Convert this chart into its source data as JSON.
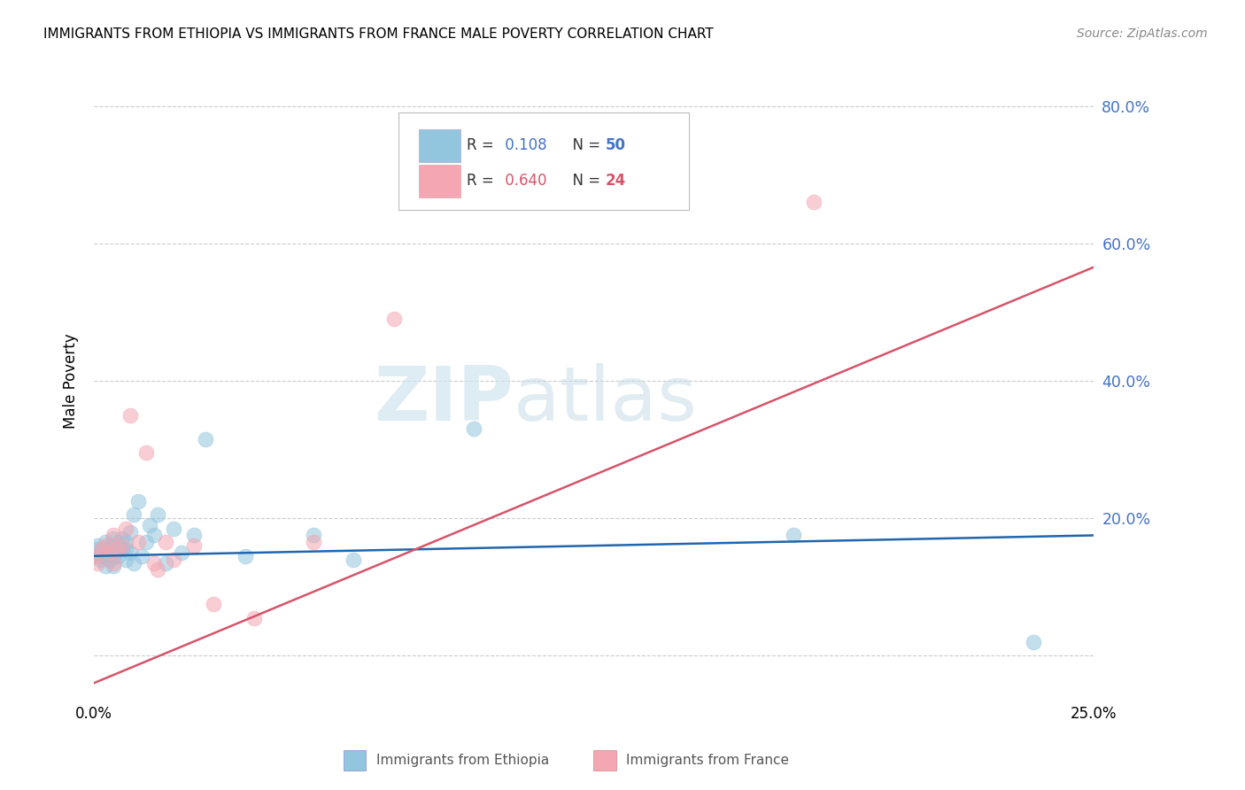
{
  "title": "IMMIGRANTS FROM ETHIOPIA VS IMMIGRANTS FROM FRANCE MALE POVERTY CORRELATION CHART",
  "source": "Source: ZipAtlas.com",
  "xlabel_ethiopia": "Immigrants from Ethiopia",
  "xlabel_france": "Immigrants from France",
  "ylabel": "Male Poverty",
  "r_ethiopia": 0.108,
  "n_ethiopia": 50,
  "r_france": 0.64,
  "n_france": 24,
  "xlim": [
    0.0,
    0.25
  ],
  "ylim": [
    -0.06,
    0.86
  ],
  "yticks": [
    0.0,
    0.2,
    0.4,
    0.6,
    0.8
  ],
  "ytick_labels": [
    "",
    "20.0%",
    "40.0%",
    "60.0%",
    "80.0%"
  ],
  "xticks": [
    0.0,
    0.05,
    0.1,
    0.15,
    0.2,
    0.25
  ],
  "xtick_labels": [
    "0.0%",
    "",
    "",
    "",
    "",
    "25.0%"
  ],
  "color_ethiopia": "#92c5de",
  "color_france": "#f4a6b2",
  "line_color_ethiopia": "#2166ac",
  "line_color_france": "#d6546a",
  "watermark_zip": "ZIP",
  "watermark_atlas": "atlas",
  "ethiopia_x": [
    0.0005,
    0.001,
    0.001,
    0.0015,
    0.002,
    0.002,
    0.002,
    0.0025,
    0.003,
    0.003,
    0.003,
    0.003,
    0.004,
    0.004,
    0.004,
    0.004,
    0.005,
    0.005,
    0.005,
    0.005,
    0.005,
    0.006,
    0.006,
    0.006,
    0.007,
    0.007,
    0.008,
    0.008,
    0.008,
    0.009,
    0.009,
    0.01,
    0.01,
    0.011,
    0.012,
    0.013,
    0.014,
    0.015,
    0.016,
    0.018,
    0.02,
    0.022,
    0.025,
    0.028,
    0.038,
    0.055,
    0.065,
    0.095,
    0.175,
    0.235
  ],
  "ethiopia_y": [
    0.155,
    0.145,
    0.16,
    0.14,
    0.155,
    0.145,
    0.155,
    0.15,
    0.13,
    0.145,
    0.155,
    0.165,
    0.14,
    0.15,
    0.155,
    0.16,
    0.13,
    0.145,
    0.155,
    0.155,
    0.17,
    0.145,
    0.155,
    0.165,
    0.155,
    0.17,
    0.14,
    0.155,
    0.165,
    0.15,
    0.18,
    0.135,
    0.205,
    0.225,
    0.145,
    0.165,
    0.19,
    0.175,
    0.205,
    0.135,
    0.185,
    0.15,
    0.175,
    0.315,
    0.145,
    0.175,
    0.14,
    0.33,
    0.175,
    0.02
  ],
  "france_x": [
    0.0005,
    0.001,
    0.002,
    0.003,
    0.004,
    0.005,
    0.005,
    0.006,
    0.007,
    0.008,
    0.009,
    0.011,
    0.013,
    0.015,
    0.016,
    0.018,
    0.02,
    0.025,
    0.03,
    0.04,
    0.055,
    0.075,
    0.14,
    0.18
  ],
  "france_y": [
    0.145,
    0.135,
    0.155,
    0.16,
    0.15,
    0.135,
    0.175,
    0.155,
    0.16,
    0.185,
    0.35,
    0.165,
    0.295,
    0.135,
    0.125,
    0.165,
    0.14,
    0.16,
    0.075,
    0.055,
    0.165,
    0.49,
    0.675,
    0.66
  ],
  "eth_line_x0": 0.0,
  "eth_line_y0": 0.145,
  "eth_line_x1": 0.25,
  "eth_line_y1": 0.175,
  "fra_line_x0": 0.0,
  "fra_line_y0": -0.04,
  "fra_line_x1": 0.25,
  "fra_line_y1": 0.565
}
